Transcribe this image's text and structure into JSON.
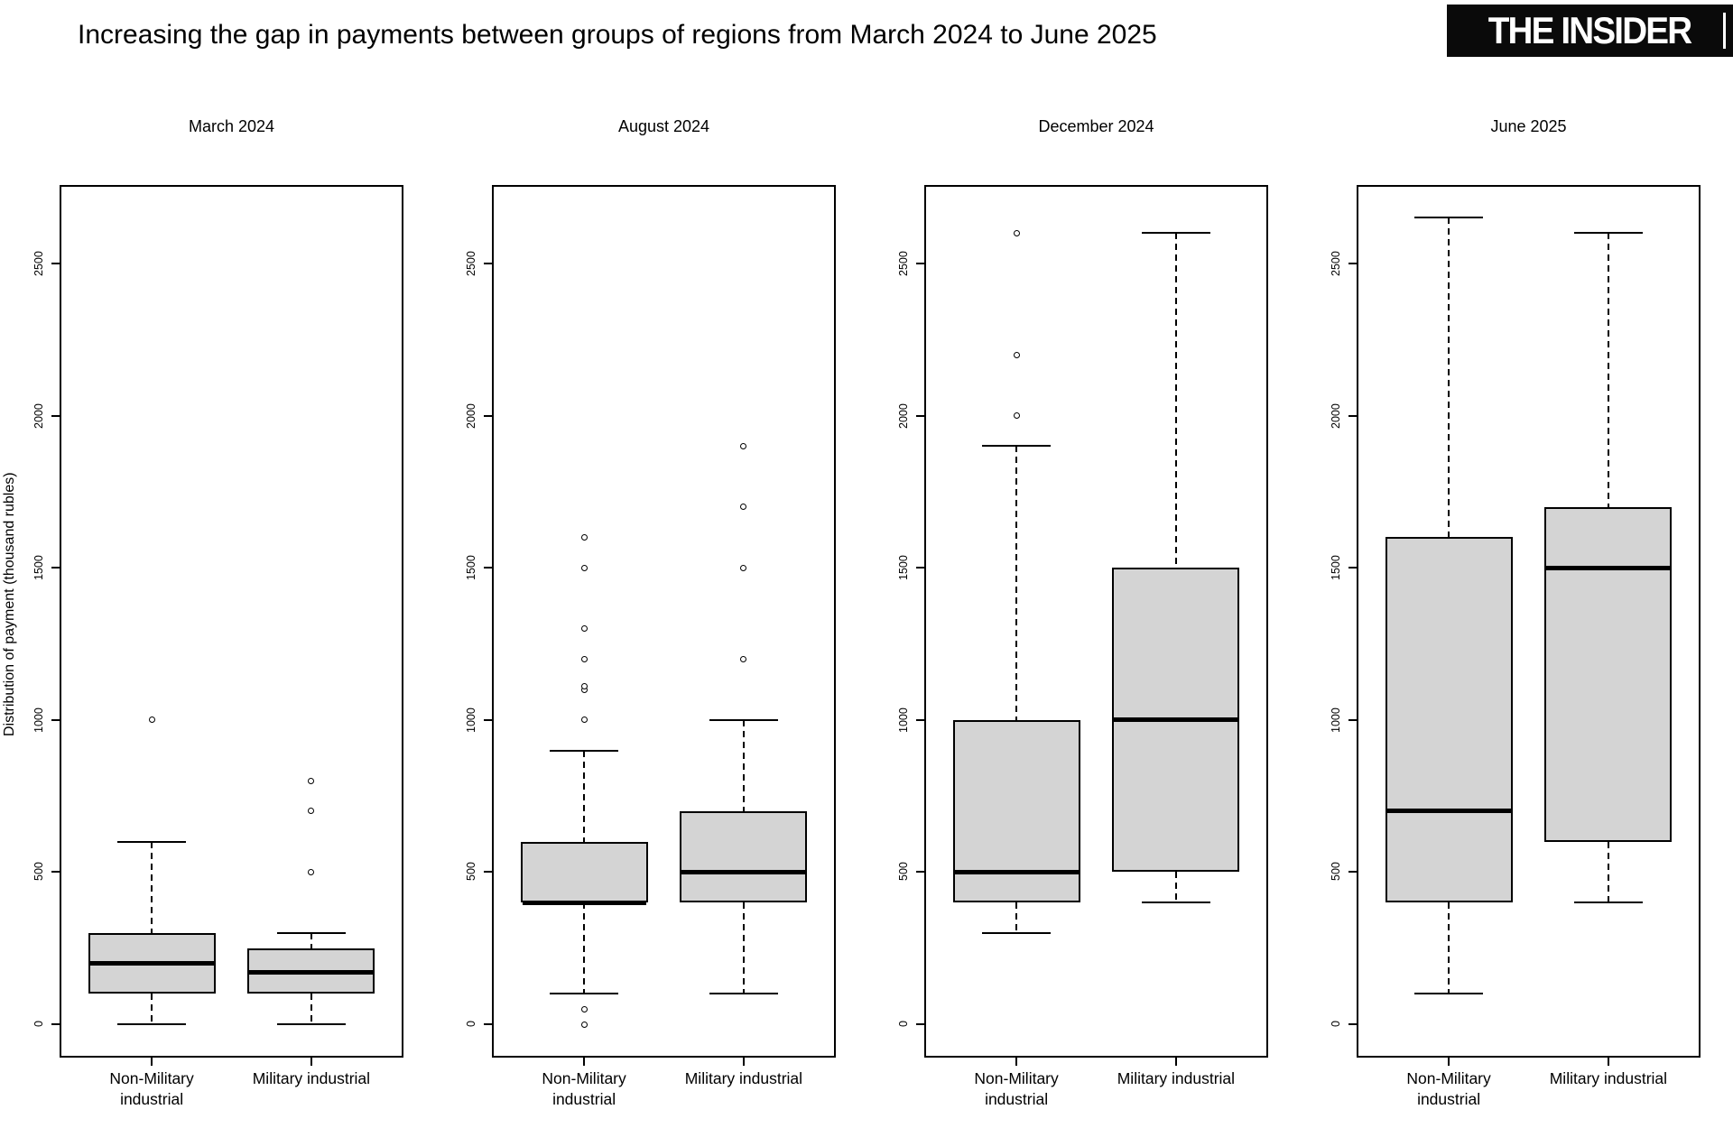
{
  "header": {
    "title": "Increasing the gap in payments between groups of regions from March 2024 to June 2025",
    "brand": "THE INSIDER"
  },
  "chart_data": {
    "type": "boxplot",
    "title": "Increasing the gap in payments between groups of regions from March 2024 to June 2025",
    "ylabel": "Distribution of payment (thousand rubles)",
    "xlabel": "",
    "categories": [
      "Non-Military\nindustrial",
      "Military industrial"
    ],
    "y_ticks": [
      0,
      500,
      1000,
      1500,
      2000,
      2500
    ],
    "ylim": [
      -110,
      2760
    ],
    "grid": false,
    "legend": false,
    "box_fill_color": "#d4d4d4",
    "box_line_color": "#000000",
    "panels": [
      {
        "title": "March 2024",
        "boxes": [
          {
            "group": "Non-Military industrial",
            "whisker_low": 0,
            "q1": 100,
            "median": 200,
            "q3": 300,
            "whisker_high": 600,
            "outliers": [
              1000
            ]
          },
          {
            "group": "Military industrial",
            "whisker_low": 0,
            "q1": 100,
            "median": 170,
            "q3": 250,
            "whisker_high": 300,
            "outliers": [
              500,
              700,
              800
            ]
          }
        ]
      },
      {
        "title": "August 2024",
        "boxes": [
          {
            "group": "Non-Military industrial",
            "whisker_low": 100,
            "q1": 400,
            "median": 400,
            "q3": 600,
            "whisker_high": 900,
            "outliers": [
              0,
              50,
              1000,
              1100,
              1110,
              1200,
              1300,
              1500,
              1600
            ]
          },
          {
            "group": "Military industrial",
            "whisker_low": 100,
            "q1": 400,
            "median": 500,
            "q3": 700,
            "whisker_high": 1000,
            "outliers": [
              1200,
              1500,
              1700,
              1900
            ]
          }
        ]
      },
      {
        "title": "December 2024",
        "boxes": [
          {
            "group": "Non-Military industrial",
            "whisker_low": 300,
            "q1": 400,
            "median": 500,
            "q3": 1000,
            "whisker_high": 1900,
            "outliers": [
              2000,
              2200,
              2600
            ]
          },
          {
            "group": "Military industrial",
            "whisker_low": 400,
            "q1": 500,
            "median": 1000,
            "q3": 1500,
            "whisker_high": 2600,
            "outliers": []
          }
        ]
      },
      {
        "title": "June 2025",
        "boxes": [
          {
            "group": "Non-Military industrial",
            "whisker_low": 100,
            "q1": 400,
            "median": 700,
            "q3": 1600,
            "whisker_high": 2650,
            "outliers": []
          },
          {
            "group": "Military industrial",
            "whisker_low": 400,
            "q1": 600,
            "median": 1500,
            "q3": 1700,
            "whisker_high": 2600,
            "outliers": []
          }
        ]
      }
    ]
  }
}
